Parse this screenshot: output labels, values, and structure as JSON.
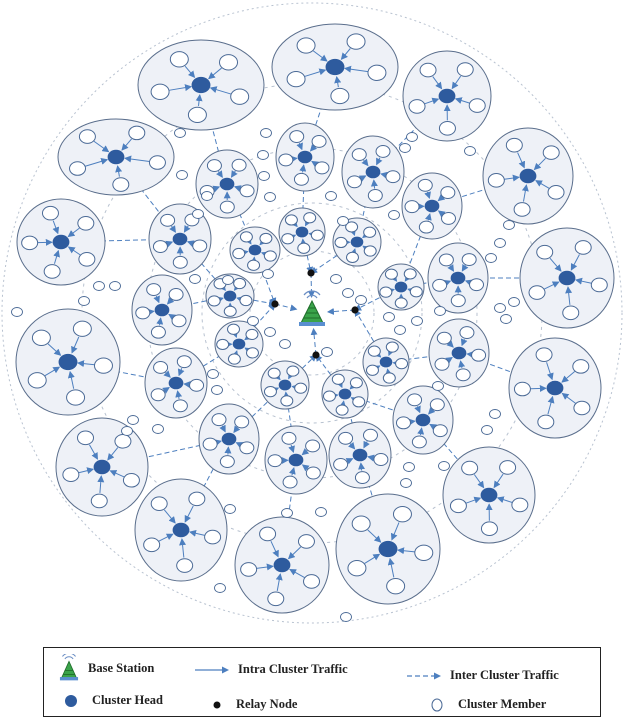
{
  "legend": {
    "base_station": "Base Station",
    "cluster_head": "Cluster Head",
    "intra_cluster_traffic": "Intra Cluster Traffic",
    "relay_node": "Relay Node",
    "inter_cluster_traffic": "Inter Cluster Traffic",
    "cluster_member": "Cluster Member"
  },
  "colors": {
    "cluster_head": "#2e5b9e",
    "cluster_fill": "#eef1f7",
    "cluster_border": "#5a6e8c",
    "member_border": "#4b6a96",
    "arrow": "#4d7fbf",
    "relay": "#111111",
    "ring": "#b8c2d0",
    "tower": "#3aa34a"
  },
  "icons": {
    "base_station": "radio-tower-icon",
    "cluster_head": "filled-dot-icon",
    "relay_node": "black-dot-icon",
    "cluster_member": "hollow-circle-icon"
  }
}
